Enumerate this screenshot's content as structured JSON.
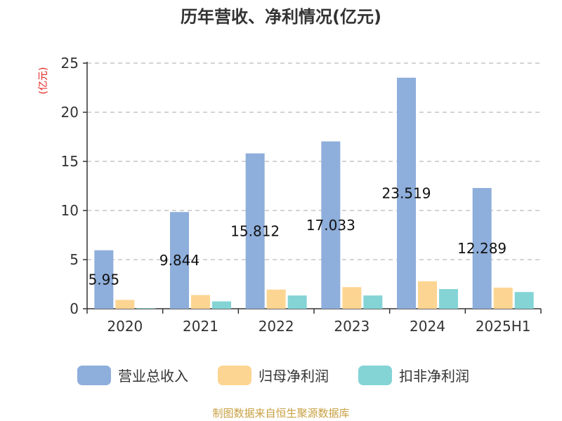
{
  "chart_data": {
    "type": "bar",
    "title": "历年营收、净利情况(亿元)",
    "ylabel": "(亿元)",
    "xlabel": "",
    "categories": [
      "2020",
      "2021",
      "2022",
      "2023",
      "2024",
      "2025H1"
    ],
    "series": [
      {
        "name": "营业总收入",
        "color": "#8eaedb",
        "values": [
          5.95,
          9.844,
          15.812,
          17.033,
          23.519,
          12.289
        ]
      },
      {
        "name": "归母净利润",
        "color": "#fdd592",
        "values": [
          0.9,
          1.4,
          1.95,
          2.2,
          2.8,
          2.15
        ]
      },
      {
        "name": "扣非净利润",
        "color": "#84d4d6",
        "values": [
          0.05,
          0.75,
          1.35,
          1.35,
          2.0,
          1.7
        ]
      }
    ],
    "data_labels": [
      "5.95",
      "9.844",
      "15.812",
      "17.033",
      "23.519",
      "12.289"
    ],
    "ylim": [
      0,
      25
    ],
    "yticks": [
      0,
      5,
      10,
      15,
      20,
      25
    ],
    "grid": true,
    "legend_position": "bottom",
    "ylabel_color": "#e0201a"
  },
  "footer": {
    "source": "制图数据来自恒生聚源数据库",
    "color": "#c8a043"
  }
}
